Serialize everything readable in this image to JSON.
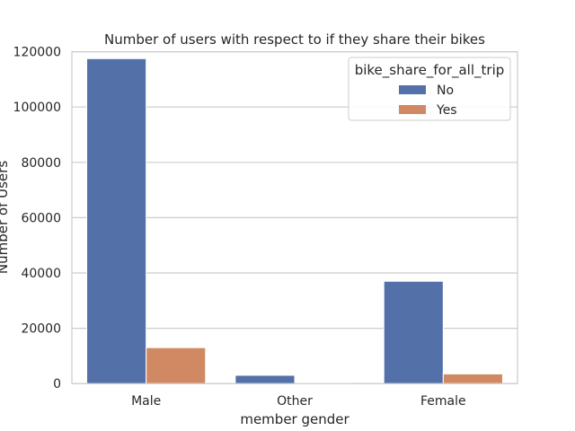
{
  "chart_data": {
    "type": "bar",
    "title": "Number of users with respect to if they share their bikes",
    "xlabel": "member gender",
    "ylabel": "Number of Users",
    "categories": [
      "Male",
      "Other",
      "Female"
    ],
    "series": [
      {
        "name": "No",
        "values": [
          117500,
          3000,
          37000
        ],
        "color": "#5470a9"
      },
      {
        "name": "Yes",
        "values": [
          13000,
          300,
          3500
        ],
        "color": "#d08962"
      }
    ],
    "ylim": [
      0,
      120000
    ],
    "yticks": [
      0,
      20000,
      40000,
      60000,
      80000,
      100000,
      120000
    ],
    "legend": {
      "title": "bike_share_for_all_trip",
      "placement": "top-right"
    },
    "grid": true
  }
}
